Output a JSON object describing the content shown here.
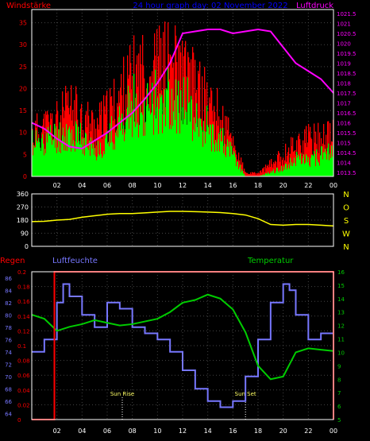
{
  "header": {
    "left_label": "Windstärke",
    "center_label": "24 hour graph day: 02 November 2022",
    "right_label": "Luftdruck"
  },
  "colors": {
    "wind": "#ff0000",
    "gust": "#00ff00",
    "pressure": "#ff00ff",
    "direction": "#ffff00",
    "humidity": "#7777ff",
    "temperature": "#00cc00",
    "rain": "#ff0000",
    "axis": "#ffffff",
    "grid": "#444444",
    "title_blue": "#0000ff",
    "hour_label": "#00aaff"
  },
  "chart_data": [
    {
      "type": "bar",
      "title": "",
      "series": [
        {
          "name": "Windstärke",
          "axis": "left"
        },
        {
          "name": "Luftdruck",
          "axis": "right"
        }
      ],
      "x_ticks": [
        "02",
        "04",
        "06",
        "08",
        "10",
        "12",
        "14",
        "16",
        "18",
        "20",
        "22",
        "00"
      ],
      "left_axis": {
        "ticks": [
          0,
          5,
          10,
          15,
          20,
          25,
          30,
          35
        ],
        "ylim": [
          0,
          38
        ]
      },
      "right_axis": {
        "ticks": [
          1013.5,
          1014,
          1014.5,
          1015,
          1015.5,
          1016,
          1016.5,
          1017,
          1017.5,
          1018,
          1018.5,
          1019,
          1019.5,
          1020,
          1020.5,
          1021,
          1021.5
        ],
        "ylim": [
          1013.3,
          1021.7
        ]
      },
      "wind_envelope": {
        "hours": [
          0,
          1,
          2,
          3,
          4,
          5,
          6,
          7,
          8,
          9,
          10,
          11,
          12,
          13,
          14,
          15,
          16,
          17,
          18,
          19,
          20,
          21,
          22,
          23,
          24
        ],
        "average": [
          8,
          9,
          10,
          10,
          9,
          6,
          9,
          12,
          17,
          18,
          19,
          19,
          17,
          15,
          12,
          9,
          5,
          0,
          0,
          1,
          2,
          4,
          4,
          5,
          6
        ],
        "gust": [
          14,
          16,
          18,
          22,
          20,
          16,
          20,
          26,
          32,
          34,
          35,
          37,
          33,
          29,
          24,
          19,
          11,
          1,
          1,
          4,
          7,
          11,
          12,
          13,
          13
        ]
      },
      "pressure": {
        "hours": [
          0,
          1,
          2,
          3,
          4,
          5,
          6,
          7,
          8,
          9,
          10,
          11,
          12,
          13,
          14,
          15,
          16,
          17,
          18,
          19,
          20,
          21,
          22,
          23,
          24
        ],
        "values": [
          1016.0,
          1015.7,
          1015.2,
          1014.8,
          1014.7,
          1015.1,
          1015.5,
          1016.0,
          1016.5,
          1017.2,
          1018.0,
          1019.0,
          1020.5,
          1020.6,
          1020.7,
          1020.7,
          1020.5,
          1020.6,
          1020.7,
          1020.6,
          1019.8,
          1019.0,
          1018.6,
          1018.2,
          1017.5
        ]
      }
    },
    {
      "type": "line",
      "title": "",
      "series": [
        {
          "name": "Windrichtung"
        }
      ],
      "left_axis": {
        "ticks": [
          0,
          90,
          180,
          270,
          360
        ],
        "ylim": [
          0,
          360
        ]
      },
      "right_labels": [
        "N",
        "W",
        "S",
        "O",
        "N"
      ],
      "hours": [
        0,
        1,
        2,
        3,
        4,
        5,
        6,
        7,
        8,
        9,
        10,
        11,
        12,
        13,
        14,
        15,
        16,
        17,
        18,
        19,
        20,
        21,
        22,
        23,
        24
      ],
      "values": [
        170,
        172,
        180,
        185,
        200,
        210,
        220,
        225,
        225,
        230,
        235,
        240,
        240,
        238,
        235,
        232,
        225,
        215,
        190,
        150,
        145,
        150,
        150,
        145,
        140
      ]
    },
    {
      "type": "line",
      "title": "",
      "series": [
        {
          "name": "Regen",
          "axis": "rain"
        },
        {
          "name": "Luftfeuchte",
          "axis": "humidity"
        },
        {
          "name": "Temperatur",
          "axis": "right"
        }
      ],
      "humidity_axis": {
        "ticks": [
          64,
          66,
          68,
          70,
          72,
          74,
          76,
          78,
          80,
          82,
          84,
          86
        ],
        "ylim": [
          63,
          87
        ]
      },
      "rain_axis": {
        "ticks": [
          0,
          0.02,
          0.04,
          0.06,
          0.08,
          0.1,
          0.12,
          0.14,
          0.16,
          0.18,
          0.2
        ],
        "ylim": [
          0,
          0.2
        ]
      },
      "right_axis": {
        "ticks": [
          5,
          6,
          7,
          8,
          9,
          10,
          11,
          12,
          13,
          14,
          15,
          16
        ],
        "ylim": [
          5,
          16
        ]
      },
      "annotations": [
        {
          "label": "Sun Rise",
          "hour": 7.2
        },
        {
          "label": "Sun Set",
          "hour": 17.0
        }
      ],
      "rain": {
        "hours": [
          0,
          1.8,
          1.8,
          2.0,
          24,
          24
        ],
        "values": [
          0,
          0,
          0.2,
          0.2,
          0.2,
          0
        ]
      },
      "humidity": {
        "hours": [
          0,
          1,
          2,
          2.5,
          3,
          4,
          5,
          6,
          7,
          8,
          9,
          10,
          11,
          12,
          13,
          14,
          15,
          16,
          17,
          18,
          19,
          20,
          20.5,
          21,
          22,
          23,
          24
        ],
        "values": [
          74,
          76,
          82,
          85,
          83,
          80,
          78,
          82,
          81,
          78,
          77,
          76,
          74,
          71,
          68,
          66,
          65,
          66,
          70,
          76,
          82,
          85,
          84,
          80,
          76,
          77,
          78
        ]
      },
      "temperature": {
        "hours": [
          0,
          1,
          2,
          3,
          4,
          5,
          6,
          7,
          8,
          9,
          10,
          11,
          12,
          13,
          14,
          15,
          16,
          17,
          18,
          19,
          20,
          21,
          22,
          23,
          24
        ],
        "values": [
          12.8,
          12.5,
          11.6,
          11.9,
          12.1,
          12.4,
          12.2,
          12.0,
          12.1,
          12.3,
          12.5,
          13.0,
          13.7,
          13.9,
          14.3,
          14.0,
          13.2,
          11.5,
          9.0,
          8.0,
          8.2,
          10.0,
          10.3,
          10.2,
          10.1
        ]
      }
    }
  ]
}
